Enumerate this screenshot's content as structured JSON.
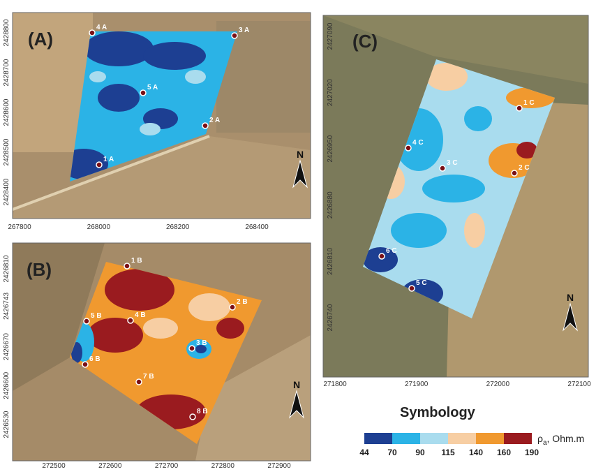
{
  "panels": [
    {
      "label": "(A)",
      "north": "N",
      "xticks": [
        "267800",
        "268000",
        "268200",
        "268400"
      ],
      "yticks": [
        "2428800",
        "2428700",
        "2428600",
        "2428500",
        "2428400"
      ],
      "points": [
        "1 A",
        "2 A",
        "3 A",
        "4 A",
        "5 A"
      ]
    },
    {
      "label": "(B)",
      "north": "N",
      "xticks": [
        "272500",
        "272600",
        "272700",
        "272800",
        "272900"
      ],
      "yticks": [
        "2426810",
        "2426743",
        "2426670",
        "2426600",
        "2426530"
      ],
      "points": [
        "1 B",
        "2 B",
        "3 B",
        "4 B",
        "5 B",
        "6 B",
        "7 B",
        "8 B"
      ]
    },
    {
      "label": "(C)",
      "north": "N",
      "xticks": [
        "271800",
        "271900",
        "272000",
        "272100"
      ],
      "yticks": [
        "2427090",
        "2427020",
        "2426950",
        "2426880",
        "2426810",
        "2426740"
      ],
      "points": [
        "1 C",
        "2 C",
        "3 C",
        "4 C",
        "5 C",
        "6 C"
      ]
    }
  ],
  "legend": {
    "title": "Symbology",
    "unit": "ρ",
    "unit_sub": "a",
    "unit_rest": ", Ohm.m",
    "colors": [
      "#1d3f92",
      "#2bb3e6",
      "#a9dcee",
      "#f7cea3",
      "#f0992f",
      "#9a1b1f"
    ],
    "breaks": [
      "44",
      "70",
      "90",
      "115",
      "140",
      "160",
      "190"
    ]
  }
}
